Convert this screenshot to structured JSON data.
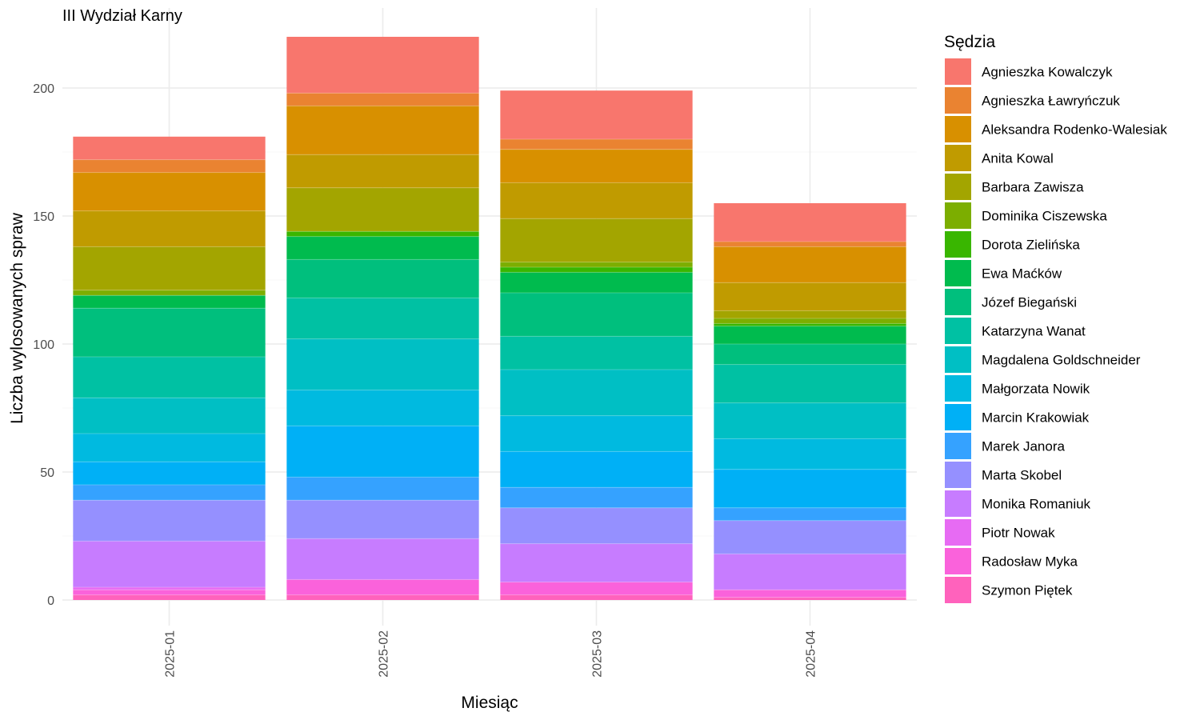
{
  "chart_data": {
    "type": "bar",
    "stacked": true,
    "title": "III Wydział Karny",
    "xlabel": "Miesiąc",
    "ylabel": "Liczba wylosowanych spraw",
    "ylim": [
      0,
      220
    ],
    "yticks": [
      0,
      50,
      100,
      150,
      200
    ],
    "grid": true,
    "legend_title": "Sędzia",
    "legend_position": "right",
    "categories": [
      "2025-01",
      "2025-02",
      "2025-03",
      "2025-04"
    ],
    "series": [
      {
        "name": "Agnieszka Kowalczyk",
        "color": "#F8766D",
        "values": [
          9,
          22,
          19,
          15
        ]
      },
      {
        "name": "Agnieszka Ławryńczuk",
        "color": "#EA8331",
        "values": [
          5,
          5,
          4,
          2
        ]
      },
      {
        "name": "Aleksandra Rodenko-Walesiak",
        "color": "#D89000",
        "values": [
          15,
          19,
          13,
          14
        ]
      },
      {
        "name": "Anita Kowal",
        "color": "#C09B00",
        "values": [
          14,
          13,
          14,
          11
        ]
      },
      {
        "name": "Barbara Zawisza",
        "color": "#A3A500",
        "values": [
          17,
          17,
          17,
          3
        ]
      },
      {
        "name": "Dominika Ciszewska",
        "color": "#7CAE00",
        "values": [
          2,
          0,
          2,
          2
        ]
      },
      {
        "name": "Dorota Zielińska",
        "color": "#39B600",
        "values": [
          0,
          2,
          2,
          1
        ]
      },
      {
        "name": "Ewa Maćków",
        "color": "#00BB4E",
        "values": [
          5,
          9,
          8,
          7
        ]
      },
      {
        "name": "Józef Biegański",
        "color": "#00BF7D",
        "values": [
          19,
          15,
          17,
          8
        ]
      },
      {
        "name": "Katarzyna Wanat",
        "color": "#00C1A3",
        "values": [
          16,
          16,
          13,
          15
        ]
      },
      {
        "name": "Magdalena Goldschneider",
        "color": "#00BFC4",
        "values": [
          14,
          20,
          18,
          14
        ]
      },
      {
        "name": "Małgorzata Nowik",
        "color": "#00BAE0",
        "values": [
          11,
          14,
          14,
          12
        ]
      },
      {
        "name": "Marcin Krakowiak",
        "color": "#00B0F6",
        "values": [
          9,
          20,
          14,
          15
        ]
      },
      {
        "name": "Marek Janora",
        "color": "#35A2FF",
        "values": [
          6,
          9,
          8,
          5
        ]
      },
      {
        "name": "Marta Skobel",
        "color": "#9590FF",
        "values": [
          16,
          15,
          14,
          13
        ]
      },
      {
        "name": "Monika Romaniuk",
        "color": "#C77CFF",
        "values": [
          18,
          16,
          15,
          14
        ]
      },
      {
        "name": "Piotr Nowak",
        "color": "#E76BF3",
        "values": [
          1,
          0,
          0,
          0
        ]
      },
      {
        "name": "Radosław Myka",
        "color": "#FA62DB",
        "values": [
          2,
          6,
          5,
          3
        ]
      },
      {
        "name": "Szymon Piętek",
        "color": "#FF62BC",
        "values": [
          2,
          2,
          2,
          1
        ]
      }
    ]
  }
}
